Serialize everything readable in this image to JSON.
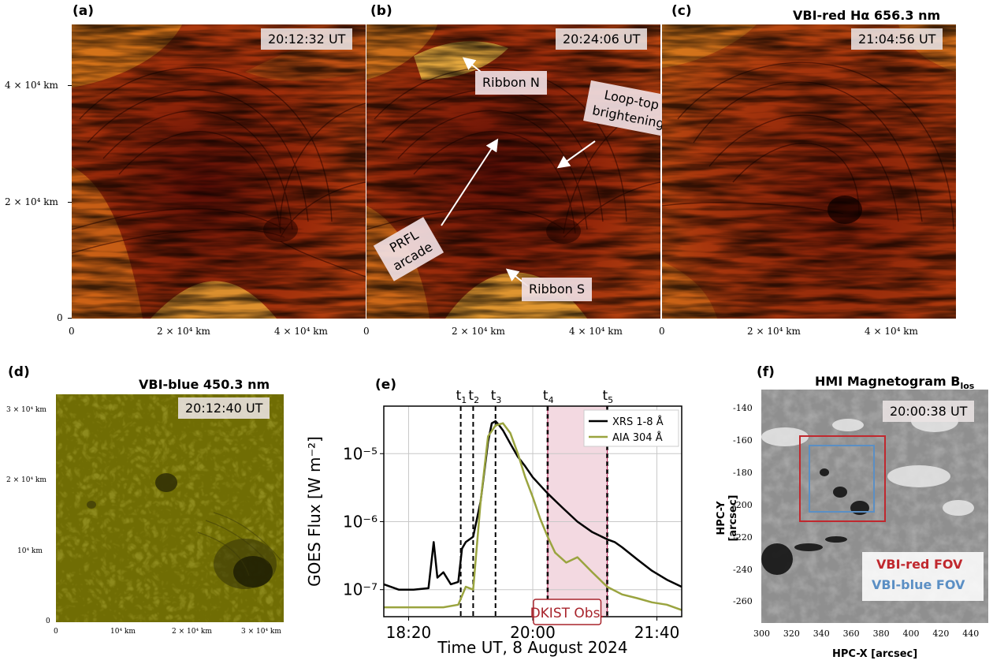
{
  "panels": {
    "a": {
      "label": "(a)",
      "time": "20:12:32 UT"
    },
    "b": {
      "label": "(b)",
      "time": "20:24:06 UT",
      "annotations": {
        "ribbon_n": "Ribbon N",
        "loop_top_1": "Loop-top",
        "loop_top_2": "brightening",
        "prfl_1": "PRFL",
        "prfl_2": "arcade",
        "ribbon_s": "Ribbon S"
      }
    },
    "c": {
      "label": "(c)",
      "time": "21:04:56 UT",
      "title": "VBI-red Hα 656.3 nm"
    },
    "top_axes": {
      "y_ticks": [
        "4 × 10⁴ km",
        "2 × 10⁴ km",
        "0"
      ],
      "x_ticks": [
        "0",
        "2 × 10⁴ km",
        "4 × 10⁴ km"
      ]
    },
    "d": {
      "label": "(d)",
      "title": "VBI-blue 450.3 nm",
      "time": "20:12:40 UT",
      "y_ticks": [
        "3 × 10⁴ km",
        "2 × 10⁴ km",
        "10⁴ km",
        "0"
      ],
      "x_ticks": [
        "0",
        "10⁴ km",
        "2 × 10⁴ km",
        "3 × 10⁴ km"
      ]
    },
    "e": {
      "label": "(e)",
      "xlabel": "Time UT, 8 August 2024",
      "ylabel": "GOES Flux [W m⁻²]",
      "shade_label": "DKIST Obs."
    },
    "f": {
      "label": "(f)",
      "title": "HMI Magnetogram B",
      "title_sub": "los",
      "time": "20:00:38 UT",
      "xlabel": "HPC-X [arcsec]",
      "ylabel": "HPC-Y [arcsec]",
      "legend_red": "VBI-red FOV",
      "legend_blue": "VBI-blue FOV",
      "x_ticks": [
        "300",
        "320",
        "340",
        "360",
        "380",
        "400",
        "420",
        "440"
      ],
      "y_ticks": [
        "-140",
        "-160",
        "-180",
        "-200",
        "-220",
        "-240",
        "-260"
      ],
      "colors": {
        "red_fov": "#c0282e",
        "blue_fov": "#5b8fc4"
      }
    }
  },
  "chart_data": {
    "type": "line",
    "title": "",
    "xlabel": "Time UT, 8 August 2024",
    "ylabel": "GOES Flux [W m⁻²]",
    "x_unit": "hours UT",
    "xlim": [
      18.0,
      22.0
    ],
    "ylim": [
      4e-08,
      5e-05
    ],
    "y_scale": "log",
    "x_tick_labels": [
      "18:20",
      "20:00",
      "21:40"
    ],
    "x_ticks": [
      18.333,
      20.0,
      21.667
    ],
    "y_tick_labels": [
      "10⁻⁷",
      "10⁻⁶",
      "10⁻⁵"
    ],
    "y_ticks": [
      1e-07,
      1e-06,
      1e-05
    ],
    "grid": true,
    "legend": "top-right",
    "vlines": [
      {
        "label": "t1",
        "x": 19.033
      },
      {
        "label": "t2",
        "x": 19.2
      },
      {
        "label": "t3",
        "x": 19.5
      },
      {
        "label": "t4",
        "x": 20.2
      },
      {
        "label": "t5",
        "x": 21.0
      }
    ],
    "shaded_interval": {
      "x": [
        20.2,
        21.0
      ],
      "label": "DKIST Obs."
    },
    "series": [
      {
        "name": "XRS 1-8 Å",
        "color": "#000000",
        "x": [
          18.0,
          18.2,
          18.4,
          18.6,
          18.67,
          18.72,
          18.8,
          18.9,
          19.0,
          19.05,
          19.1,
          19.2,
          19.3,
          19.4,
          19.45,
          19.5,
          19.55,
          19.6,
          19.7,
          19.8,
          19.9,
          20.0,
          20.2,
          20.4,
          20.6,
          20.8,
          21.0,
          21.1,
          21.2,
          21.4,
          21.6,
          21.8,
          22.0
        ],
        "y": [
          1.2e-07,
          1e-07,
          1e-07,
          1.05e-07,
          5e-07,
          1.5e-07,
          1.8e-07,
          1.2e-07,
          1.3e-07,
          4e-07,
          5e-07,
          6e-07,
          2e-06,
          1.5e-05,
          2.8e-05,
          3e-05,
          2.6e-05,
          2.2e-05,
          1.4e-05,
          9e-06,
          6.5e-06,
          4.5e-06,
          2.6e-06,
          1.6e-06,
          1e-06,
          7e-07,
          5.5e-07,
          5e-07,
          4.2e-07,
          2.8e-07,
          1.9e-07,
          1.4e-07,
          1.1e-07
        ]
      },
      {
        "name": "AIA 304 Å",
        "color": "#9aa43f",
        "x": [
          18.0,
          18.2,
          18.4,
          18.6,
          18.8,
          19.0,
          19.1,
          19.2,
          19.3,
          19.4,
          19.5,
          19.6,
          19.7,
          19.8,
          19.9,
          20.0,
          20.1,
          20.2,
          20.3,
          20.45,
          20.6,
          20.8,
          21.0,
          21.2,
          21.4,
          21.6,
          21.8,
          22.0
        ],
        "y": [
          5.5e-08,
          5.5e-08,
          5.5e-08,
          5.5e-08,
          5.5e-08,
          6e-08,
          1.1e-07,
          1e-07,
          2e-06,
          1.8e-05,
          2.6e-05,
          2.8e-05,
          2e-05,
          1e-05,
          4.5e-06,
          2.3e-06,
          1.1e-06,
          6e-07,
          3.5e-07,
          2.5e-07,
          3e-07,
          1.8e-07,
          1.1e-07,
          8.5e-08,
          7.5e-08,
          6.5e-08,
          6e-08,
          5e-08
        ]
      }
    ]
  }
}
